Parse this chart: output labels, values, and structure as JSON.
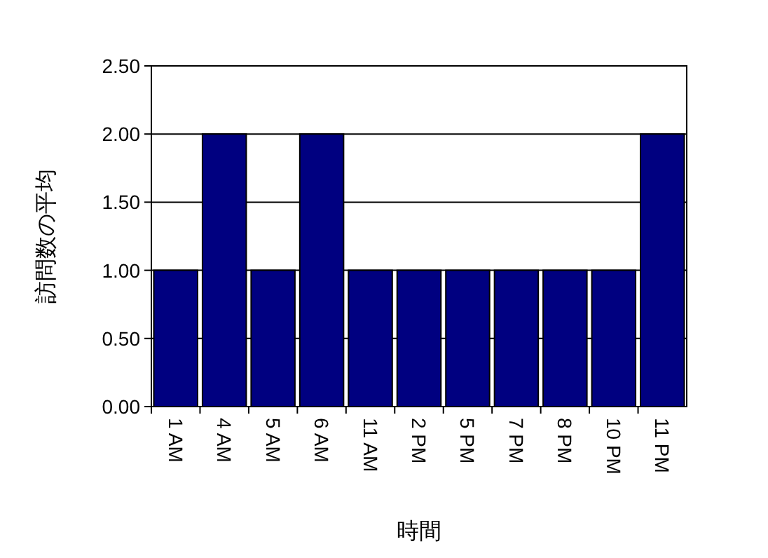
{
  "chart_data": {
    "type": "bar",
    "xlabel": "時間",
    "ylabel": "訪問数の平均",
    "categories": [
      "1 AM",
      "4 AM",
      "5 AM",
      "6 AM",
      "11 AM",
      "2 PM",
      "5 PM",
      "7 PM",
      "8 PM",
      "10 PM",
      "11 PM"
    ],
    "values": [
      1,
      2,
      1,
      2,
      1,
      1,
      1,
      1,
      1,
      1,
      2
    ],
    "color": "#000080",
    "ylim": [
      0,
      2.5
    ],
    "yticks": [
      {
        "value": 0,
        "label": "0.00"
      },
      {
        "value": 0.5,
        "label": "0.50"
      },
      {
        "value": 1,
        "label": "1.00"
      },
      {
        "value": 1.5,
        "label": "1.50"
      },
      {
        "value": 2,
        "label": "2.00"
      },
      {
        "value": 2.5,
        "label": "2.50"
      }
    ],
    "grid": "y"
  }
}
